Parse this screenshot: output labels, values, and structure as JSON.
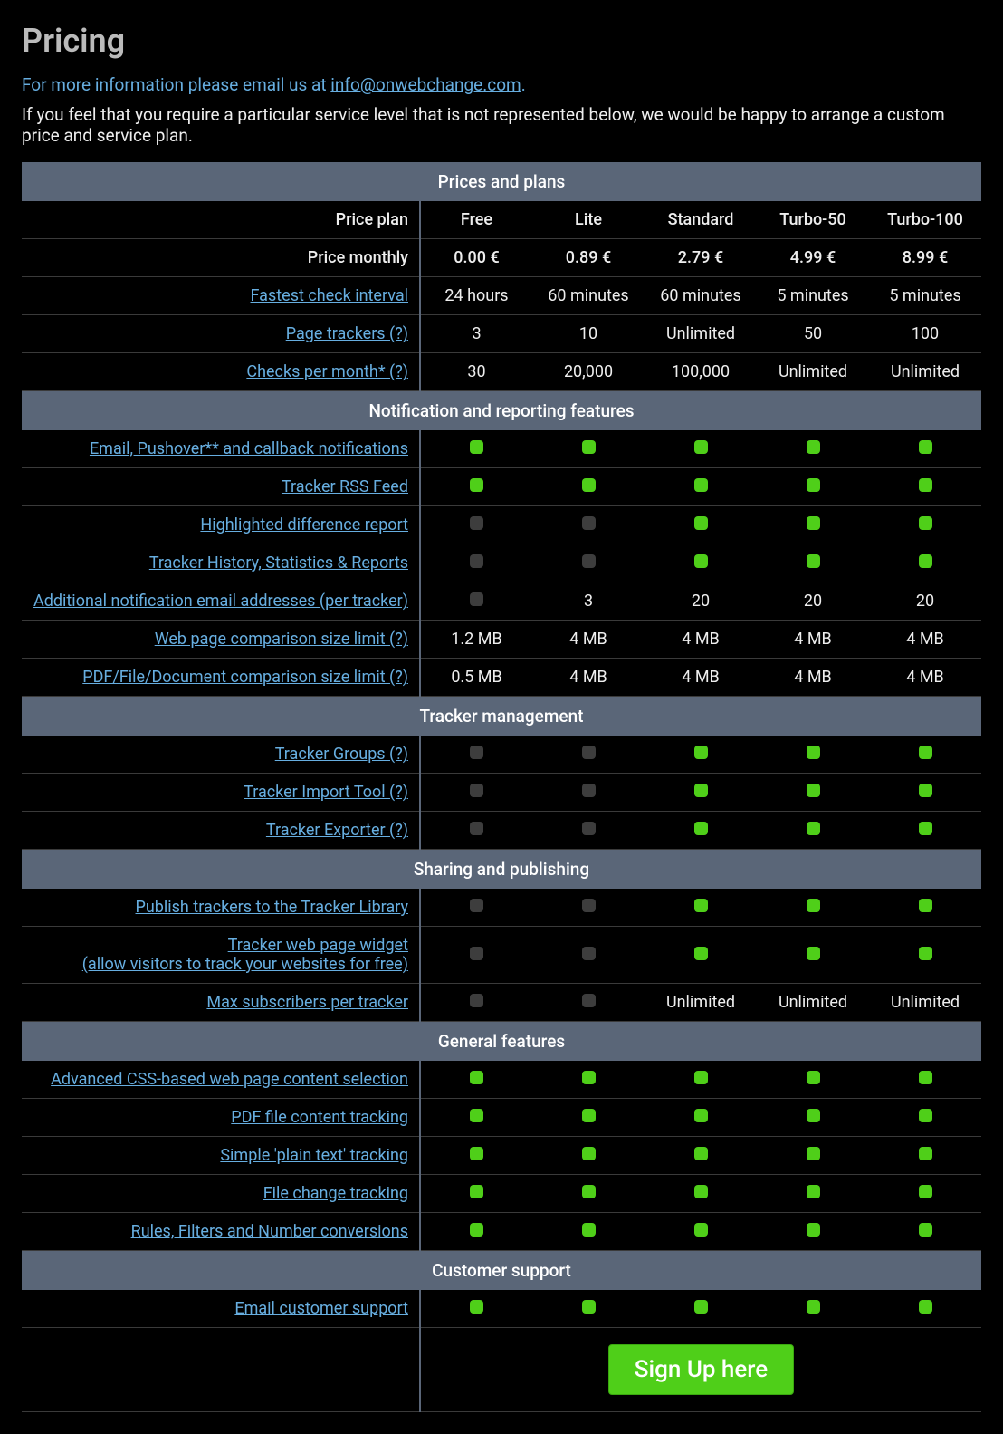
{
  "colors": {
    "background": "#000000",
    "section_header_bg": "#5a6678",
    "section_header_text": "#ffffff",
    "text": "#eeeeee",
    "heading": "#bbbbbb",
    "link": "#67aee0",
    "row_border": "#3a3a3a",
    "check_on": "#4fcf19",
    "check_off": "#3d3d3d",
    "button_bg": "#4fcf19",
    "button_border": "#3aa80f",
    "button_text": "#ffffff"
  },
  "page_title": "Pricing",
  "intro_line1_prefix": "For more information please email us at ",
  "intro_email": "info@onwebchange.com",
  "intro_line1_suffix": ".",
  "intro_line2": "If you feel that you require a particular service level that is not represented below, we would be happy to arrange a custom price and service plan.",
  "plan_count": 5,
  "plans": [
    "Free",
    "Lite",
    "Standard",
    "Turbo-50",
    "Turbo-100"
  ],
  "sections": [
    {
      "title": "Prices and plans",
      "rows": [
        {
          "label": "Price plan",
          "is_link": false,
          "type": "text",
          "values": [
            "Free",
            "Lite",
            "Standard",
            "Turbo-50",
            "Turbo-100"
          ]
        },
        {
          "label": "Price monthly",
          "is_link": false,
          "type": "text",
          "values": [
            "0.00 €",
            "0.89 €",
            "2.79 €",
            "4.99 €",
            "8.99 €"
          ]
        },
        {
          "label": "Fastest check interval",
          "is_link": true,
          "type": "text",
          "values": [
            "24 hours",
            "60 minutes",
            "60 minutes",
            "5 minutes",
            "5 minutes"
          ]
        },
        {
          "label": "Page trackers (?)",
          "is_link": true,
          "type": "text",
          "values": [
            "3",
            "10",
            "Unlimited",
            "50",
            "100"
          ]
        },
        {
          "label": "Checks per month* (?)",
          "is_link": true,
          "type": "text",
          "values": [
            "30",
            "20,000",
            "100,000",
            "Unlimited",
            "Unlimited"
          ]
        }
      ]
    },
    {
      "title": "Notification and reporting features",
      "rows": [
        {
          "label": "Email, Pushover** and callback notifications",
          "is_link": true,
          "type": "check",
          "values": [
            true,
            true,
            true,
            true,
            true
          ]
        },
        {
          "label": "Tracker RSS Feed",
          "is_link": true,
          "type": "check",
          "values": [
            true,
            true,
            true,
            true,
            true
          ]
        },
        {
          "label": "Highlighted difference report",
          "is_link": true,
          "type": "check",
          "values": [
            false,
            false,
            true,
            true,
            true
          ]
        },
        {
          "label": "Tracker History, Statistics & Reports",
          "is_link": true,
          "type": "check",
          "values": [
            false,
            false,
            true,
            true,
            true
          ]
        },
        {
          "label": "Additional notification email addresses (per tracker)",
          "is_link": true,
          "type": "mixed",
          "values": [
            false,
            "3",
            "20",
            "20",
            "20"
          ]
        },
        {
          "label": "Web page comparison size limit (?)",
          "is_link": true,
          "type": "text",
          "values": [
            "1.2 MB",
            "4 MB",
            "4 MB",
            "4 MB",
            "4 MB"
          ]
        },
        {
          "label": "PDF/File/Document comparison size limit (?)",
          "is_link": true,
          "type": "text",
          "values": [
            "0.5 MB",
            "4 MB",
            "4 MB",
            "4 MB",
            "4 MB"
          ]
        }
      ]
    },
    {
      "title": "Tracker management",
      "rows": [
        {
          "label": "Tracker Groups (?)",
          "is_link": true,
          "type": "check",
          "values": [
            false,
            false,
            true,
            true,
            true
          ]
        },
        {
          "label": "Tracker Import Tool (?)",
          "is_link": true,
          "type": "check",
          "values": [
            false,
            false,
            true,
            true,
            true
          ]
        },
        {
          "label": "Tracker Exporter (?)",
          "is_link": true,
          "type": "check",
          "values": [
            false,
            false,
            true,
            true,
            true
          ]
        }
      ]
    },
    {
      "title": "Sharing and publishing",
      "rows": [
        {
          "label": "Publish trackers to the Tracker Library",
          "is_link": true,
          "type": "check",
          "values": [
            false,
            false,
            true,
            true,
            true
          ]
        },
        {
          "label": "Tracker web page widget\n(allow visitors to track your websites for free)",
          "is_link": true,
          "type": "check",
          "values": [
            false,
            false,
            true,
            true,
            true
          ]
        },
        {
          "label": "Max subscribers per tracker",
          "is_link": true,
          "type": "mixed",
          "values": [
            false,
            false,
            "Unlimited",
            "Unlimited",
            "Unlimited"
          ]
        }
      ]
    },
    {
      "title": "General features",
      "rows": [
        {
          "label": "Advanced CSS-based web page content selection",
          "is_link": true,
          "type": "check",
          "values": [
            true,
            true,
            true,
            true,
            true
          ]
        },
        {
          "label": "PDF file content tracking",
          "is_link": true,
          "type": "check",
          "values": [
            true,
            true,
            true,
            true,
            true
          ]
        },
        {
          "label": "Simple 'plain text' tracking",
          "is_link": true,
          "type": "check",
          "values": [
            true,
            true,
            true,
            true,
            true
          ]
        },
        {
          "label": "File change tracking",
          "is_link": true,
          "type": "check",
          "values": [
            true,
            true,
            true,
            true,
            true
          ]
        },
        {
          "label": "Rules, Filters and Number conversions",
          "is_link": true,
          "type": "check",
          "values": [
            true,
            true,
            true,
            true,
            true
          ]
        }
      ]
    },
    {
      "title": "Customer support",
      "rows": [
        {
          "label": "Email customer support",
          "is_link": true,
          "type": "check",
          "values": [
            true,
            true,
            true,
            true,
            true
          ]
        }
      ]
    }
  ],
  "signup_button_label": "Sign Up here"
}
